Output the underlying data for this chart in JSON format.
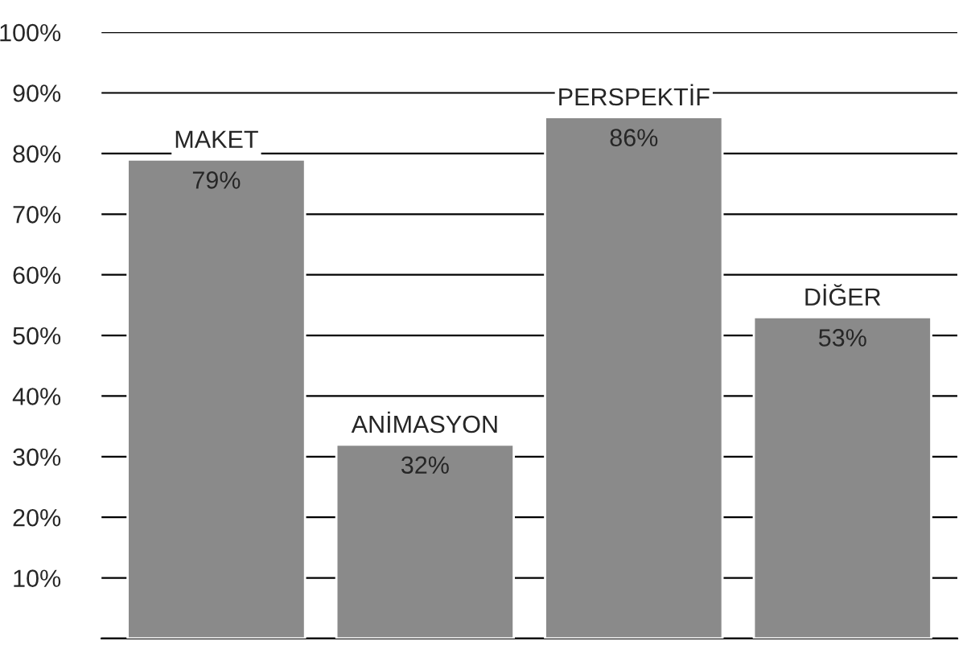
{
  "chart_data": {
    "type": "bar",
    "categories": [
      "MAKET",
      "ANİMASYON",
      "PERSPEKTİF",
      "DİĞER"
    ],
    "values": [
      79,
      32,
      86,
      53
    ],
    "value_labels": [
      "79%",
      "32%",
      "86%",
      "53%"
    ],
    "color": "#8a8a8a",
    "ylim": [
      0,
      100
    ],
    "yticks": [
      {
        "value": 0,
        "label": null
      },
      {
        "value": 10,
        "label": "10%"
      },
      {
        "value": 20,
        "label": "20%"
      },
      {
        "value": 30,
        "label": "30%"
      },
      {
        "value": 40,
        "label": "40%"
      },
      {
        "value": 50,
        "label": "50%"
      },
      {
        "value": 60,
        "label": "60%"
      },
      {
        "value": 70,
        "label": "70%"
      },
      {
        "value": 80,
        "label": "80%"
      },
      {
        "value": 90,
        "label": "90%"
      },
      {
        "value": 100,
        "label": "100%"
      }
    ],
    "grid": "y",
    "tick_labels": "y"
  }
}
